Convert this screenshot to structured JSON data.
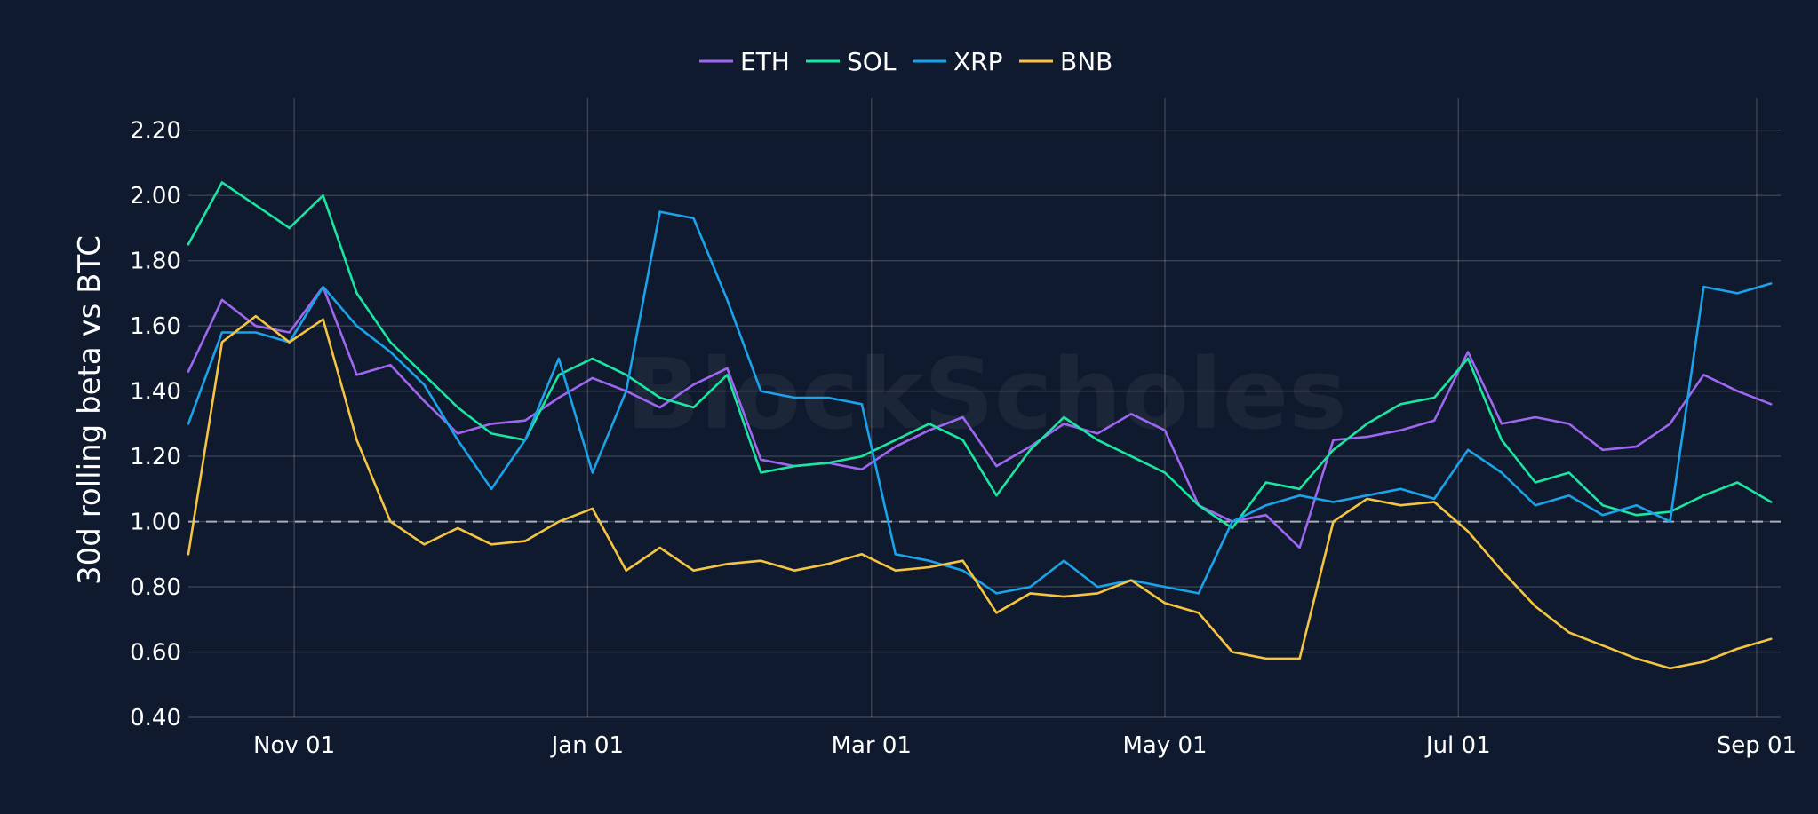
{
  "chart_data": {
    "type": "line",
    "ylabel": "30d rolling beta vs BTC",
    "xlabel": "",
    "title": "",
    "watermark": "BlockScholes",
    "x_start": "2024-10-10",
    "x_end": "2025-09-06",
    "x_step_days": 7,
    "ylim": [
      0.4,
      2.3
    ],
    "yticks": [
      "0.40",
      "0.60",
      "0.80",
      "1.00",
      "1.20",
      "1.40",
      "1.60",
      "1.80",
      "2.00",
      "2.20"
    ],
    "xticks": [
      {
        "date": "2024-11-01",
        "label": "Nov 01"
      },
      {
        "date": "2025-01-01",
        "label": "Jan 01"
      },
      {
        "date": "2025-03-01",
        "label": "Mar 01"
      },
      {
        "date": "2025-05-01",
        "label": "May 01"
      },
      {
        "date": "2025-07-01",
        "label": "Jul 01"
      },
      {
        "date": "2025-09-01",
        "label": "Sep 01"
      }
    ],
    "reference_line": 1.0,
    "grid": true,
    "legend_position": "top-center",
    "series": [
      {
        "name": "ETH",
        "color": "#a066f0",
        "values": [
          1.46,
          1.68,
          1.6,
          1.58,
          1.72,
          1.45,
          1.48,
          1.37,
          1.27,
          1.3,
          1.31,
          1.38,
          1.44,
          1.4,
          1.35,
          1.42,
          1.47,
          1.19,
          1.17,
          1.18,
          1.16,
          1.23,
          1.28,
          1.32,
          1.17,
          1.23,
          1.3,
          1.27,
          1.33,
          1.28,
          1.05,
          1.0,
          1.02,
          0.92,
          1.25,
          1.26,
          1.28,
          1.31,
          1.52,
          1.3,
          1.32,
          1.3,
          1.22,
          1.23,
          1.3,
          1.45,
          1.4,
          1.36
        ]
      },
      {
        "name": "SOL",
        "color": "#19e6a0",
        "values": [
          1.85,
          2.04,
          1.97,
          1.9,
          2.0,
          1.7,
          1.55,
          1.45,
          1.35,
          1.27,
          1.25,
          1.45,
          1.5,
          1.45,
          1.38,
          1.35,
          1.45,
          1.15,
          1.17,
          1.18,
          1.2,
          1.25,
          1.3,
          1.25,
          1.08,
          1.22,
          1.32,
          1.25,
          1.2,
          1.15,
          1.05,
          0.98,
          1.12,
          1.1,
          1.22,
          1.3,
          1.36,
          1.38,
          1.5,
          1.25,
          1.12,
          1.15,
          1.05,
          1.02,
          1.03,
          1.08,
          1.12,
          1.06
        ]
      },
      {
        "name": "XRP",
        "color": "#1aa3e8",
        "values": [
          1.3,
          1.58,
          1.58,
          1.55,
          1.72,
          1.6,
          1.52,
          1.42,
          1.25,
          1.1,
          1.25,
          1.5,
          1.15,
          1.4,
          1.95,
          1.93,
          1.68,
          1.4,
          1.38,
          1.38,
          1.36,
          0.9,
          0.88,
          0.85,
          0.78,
          0.8,
          0.88,
          0.8,
          0.82,
          0.8,
          0.78,
          1.0,
          1.05,
          1.08,
          1.06,
          1.08,
          1.1,
          1.07,
          1.22,
          1.15,
          1.05,
          1.08,
          1.02,
          1.05,
          1.0,
          1.72,
          1.7,
          1.73
        ]
      },
      {
        "name": "BNB",
        "color": "#f5c542",
        "values": [
          0.9,
          1.55,
          1.63,
          1.55,
          1.62,
          1.25,
          1.0,
          0.93,
          0.98,
          0.93,
          0.94,
          1.0,
          1.04,
          0.85,
          0.92,
          0.85,
          0.87,
          0.88,
          0.85,
          0.87,
          0.9,
          0.85,
          0.86,
          0.88,
          0.72,
          0.78,
          0.77,
          0.78,
          0.82,
          0.75,
          0.72,
          0.6,
          0.58,
          0.58,
          1.0,
          1.07,
          1.05,
          1.06,
          0.97,
          0.85,
          0.74,
          0.66,
          0.62,
          0.58,
          0.55,
          0.57,
          0.61,
          0.64
        ]
      }
    ]
  }
}
